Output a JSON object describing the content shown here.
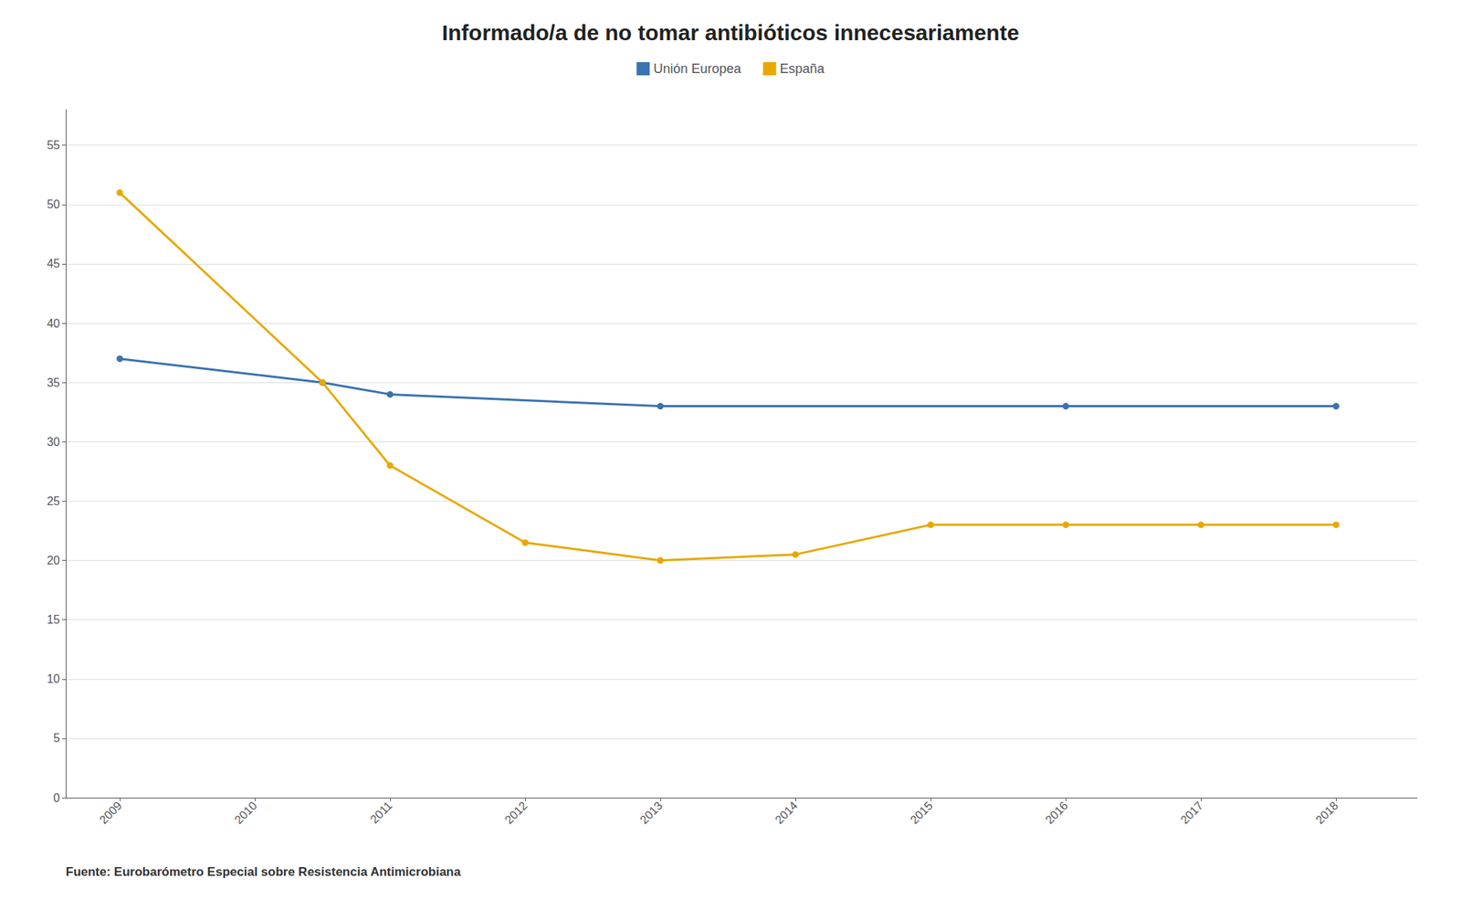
{
  "chart_data": {
    "type": "line",
    "title": "Informado/a de no tomar antibióticos innecesariamente",
    "footnote": "Fuente: Eurobarómetro Especial sobre Resistencia Antimicrobiana",
    "series": [
      {
        "name": "Unión Europea",
        "color": "#3B72B0",
        "x": [
          2009,
          2010.5,
          2011,
          2013,
          2016,
          2018
        ],
        "values": [
          37,
          35,
          34,
          33,
          33,
          33
        ]
      },
      {
        "name": "España",
        "color": "#E8A800",
        "x": [
          2009,
          2010.5,
          2011,
          2012,
          2013,
          2014,
          2015,
          2016,
          2017,
          2018
        ],
        "values": [
          51,
          35,
          28,
          21.5,
          20,
          20.5,
          23,
          23,
          23,
          23
        ]
      }
    ],
    "xlim": [
      2008.6,
      2018.6
    ],
    "xticks": [
      2009,
      2010,
      2011,
      2012,
      2013,
      2014,
      2015,
      2016,
      2017,
      2018
    ],
    "ylim": [
      0,
      58
    ],
    "yticks": [
      0,
      5,
      10,
      15,
      20,
      25,
      30,
      35,
      40,
      45,
      50,
      55
    ],
    "grid": true,
    "legend": "top",
    "marker": "circle"
  }
}
